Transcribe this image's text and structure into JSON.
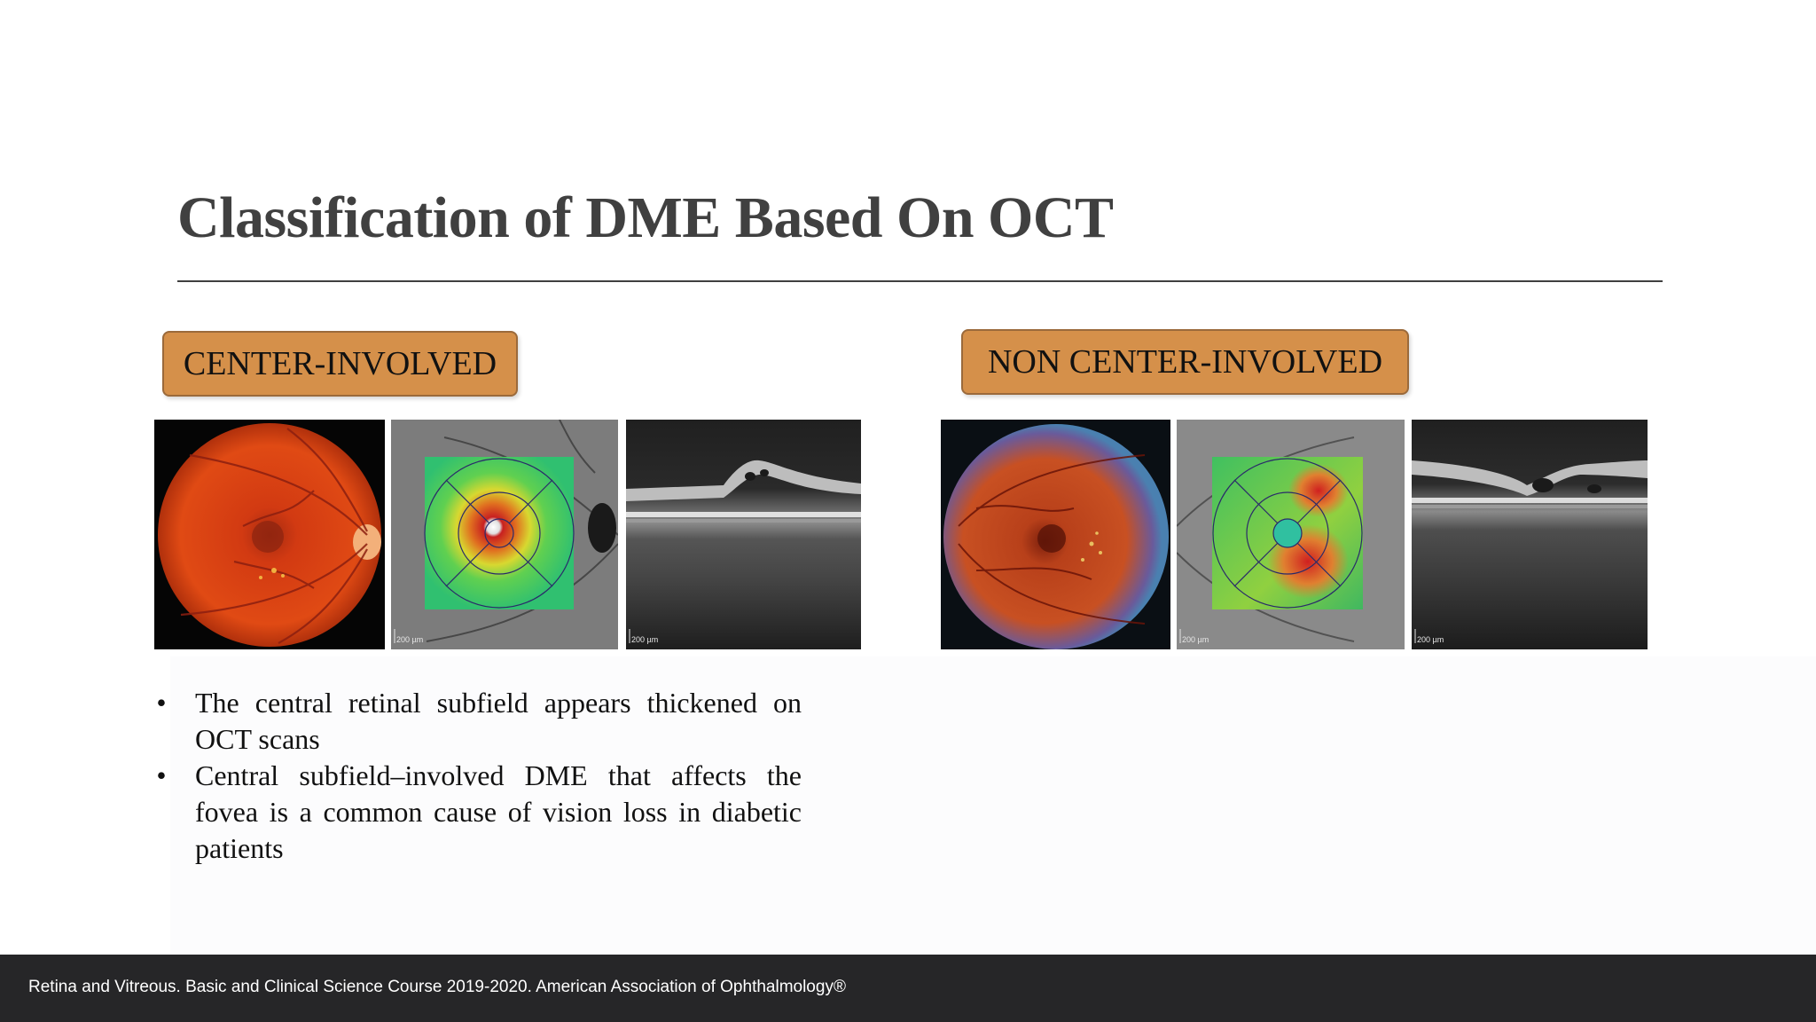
{
  "slide": {
    "title": "Classification of DME Based On OCT",
    "labels": {
      "center_involved": "CENTER-INVOLVED",
      "non_center_involved": "NON CENTER-INVOLVED"
    },
    "bullets": [
      "The central retinal subfield appears thickened on OCT scans",
      "Central subfield–involved DME that affects the fovea is a common cause of vision loss in diabetic patients"
    ],
    "bullet_glyph": "•",
    "image_scale_labels": {
      "center_thickness_map": "200 µm",
      "center_oct_scan": "200 µm",
      "non_center_thickness_map": "200 µm",
      "non_center_oct_scan": "200 µm"
    }
  },
  "footer": {
    "citation": "Retina and Vitreous. Basic and Clinical Science Course 2019-2020. American Association of Ophthalmology®"
  },
  "colors": {
    "title": "#404040",
    "label_fill": "#d5904a",
    "label_border": "#9b6a3b",
    "footer_bg": "#262628",
    "footer_text": "#ffffff"
  }
}
